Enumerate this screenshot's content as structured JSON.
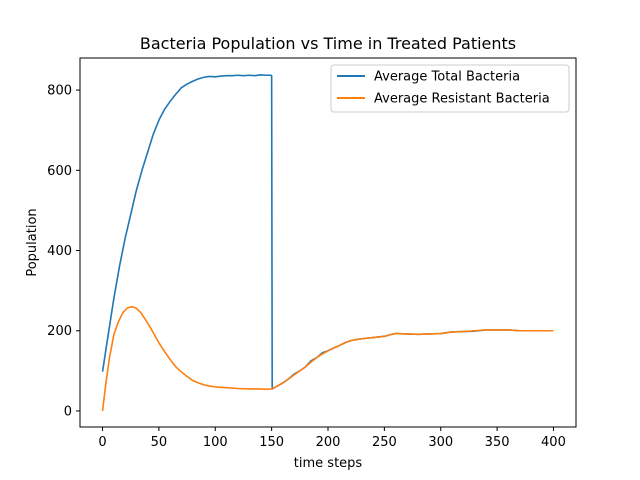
{
  "chart_data": {
    "type": "line",
    "title": "Bacteria Population vs Time in Treated Patients",
    "xlabel": "time steps",
    "ylabel": "Population",
    "xlim": [
      -20,
      420
    ],
    "ylim": [
      -40,
      880
    ],
    "xticks": [
      0,
      50,
      100,
      150,
      200,
      250,
      300,
      350,
      400
    ],
    "yticks": [
      0,
      200,
      400,
      600,
      800
    ],
    "grid": false,
    "legend_position": "top-right",
    "series": [
      {
        "name": "Average Total Bacteria",
        "color": "#1f77b4",
        "x": [
          0,
          5,
          10,
          15,
          20,
          25,
          30,
          35,
          40,
          45,
          50,
          55,
          60,
          65,
          70,
          75,
          80,
          85,
          90,
          95,
          100,
          105,
          110,
          115,
          120,
          125,
          130,
          135,
          140,
          145,
          149,
          150,
          150.5,
          155,
          160,
          165,
          170,
          175,
          180,
          185,
          190,
          195,
          200,
          205,
          210,
          215,
          220,
          225,
          230,
          240,
          250,
          255,
          260,
          270,
          280,
          290,
          300,
          310,
          320,
          330,
          340,
          350,
          360,
          370,
          380,
          390,
          400
        ],
        "y": [
          98,
          190,
          280,
          360,
          430,
          490,
          550,
          600,
          645,
          690,
          725,
          752,
          772,
          790,
          806,
          815,
          822,
          828,
          832,
          834,
          833,
          835,
          836,
          836,
          837,
          836,
          837,
          836,
          838,
          837,
          837,
          836,
          55,
          62,
          70,
          80,
          92,
          100,
          110,
          125,
          133,
          145,
          150,
          157,
          163,
          170,
          175,
          178,
          180,
          183,
          186,
          190,
          193,
          192,
          191,
          192,
          193,
          197,
          198,
          199,
          202,
          202,
          202,
          200,
          200,
          200,
          200
        ]
      },
      {
        "name": "Average Resistant Bacteria",
        "color": "#ff7f0e",
        "x": [
          0,
          3,
          6,
          10,
          14,
          18,
          22,
          26,
          30,
          34,
          38,
          42,
          46,
          50,
          55,
          60,
          65,
          70,
          75,
          80,
          85,
          90,
          95,
          100,
          110,
          120,
          130,
          140,
          145,
          150,
          155,
          160,
          165,
          170,
          175,
          180,
          185,
          190,
          195,
          200,
          205,
          210,
          215,
          220,
          225,
          230,
          240,
          250,
          255,
          260,
          270,
          280,
          290,
          300,
          310,
          320,
          330,
          340,
          350,
          360,
          370,
          380,
          390,
          400
        ],
        "y": [
          0,
          70,
          130,
          190,
          222,
          245,
          257,
          260,
          256,
          245,
          228,
          210,
          190,
          170,
          148,
          128,
          110,
          97,
          86,
          76,
          70,
          65,
          62,
          60,
          58,
          56,
          55,
          55,
          54,
          55,
          62,
          70,
          80,
          90,
          100,
          110,
          122,
          133,
          142,
          150,
          157,
          163,
          170,
          175,
          178,
          180,
          183,
          186,
          190,
          193,
          192,
          191,
          192,
          193,
          197,
          198,
          200,
          202,
          202,
          202,
          200,
          200,
          200,
          200
        ]
      }
    ]
  }
}
